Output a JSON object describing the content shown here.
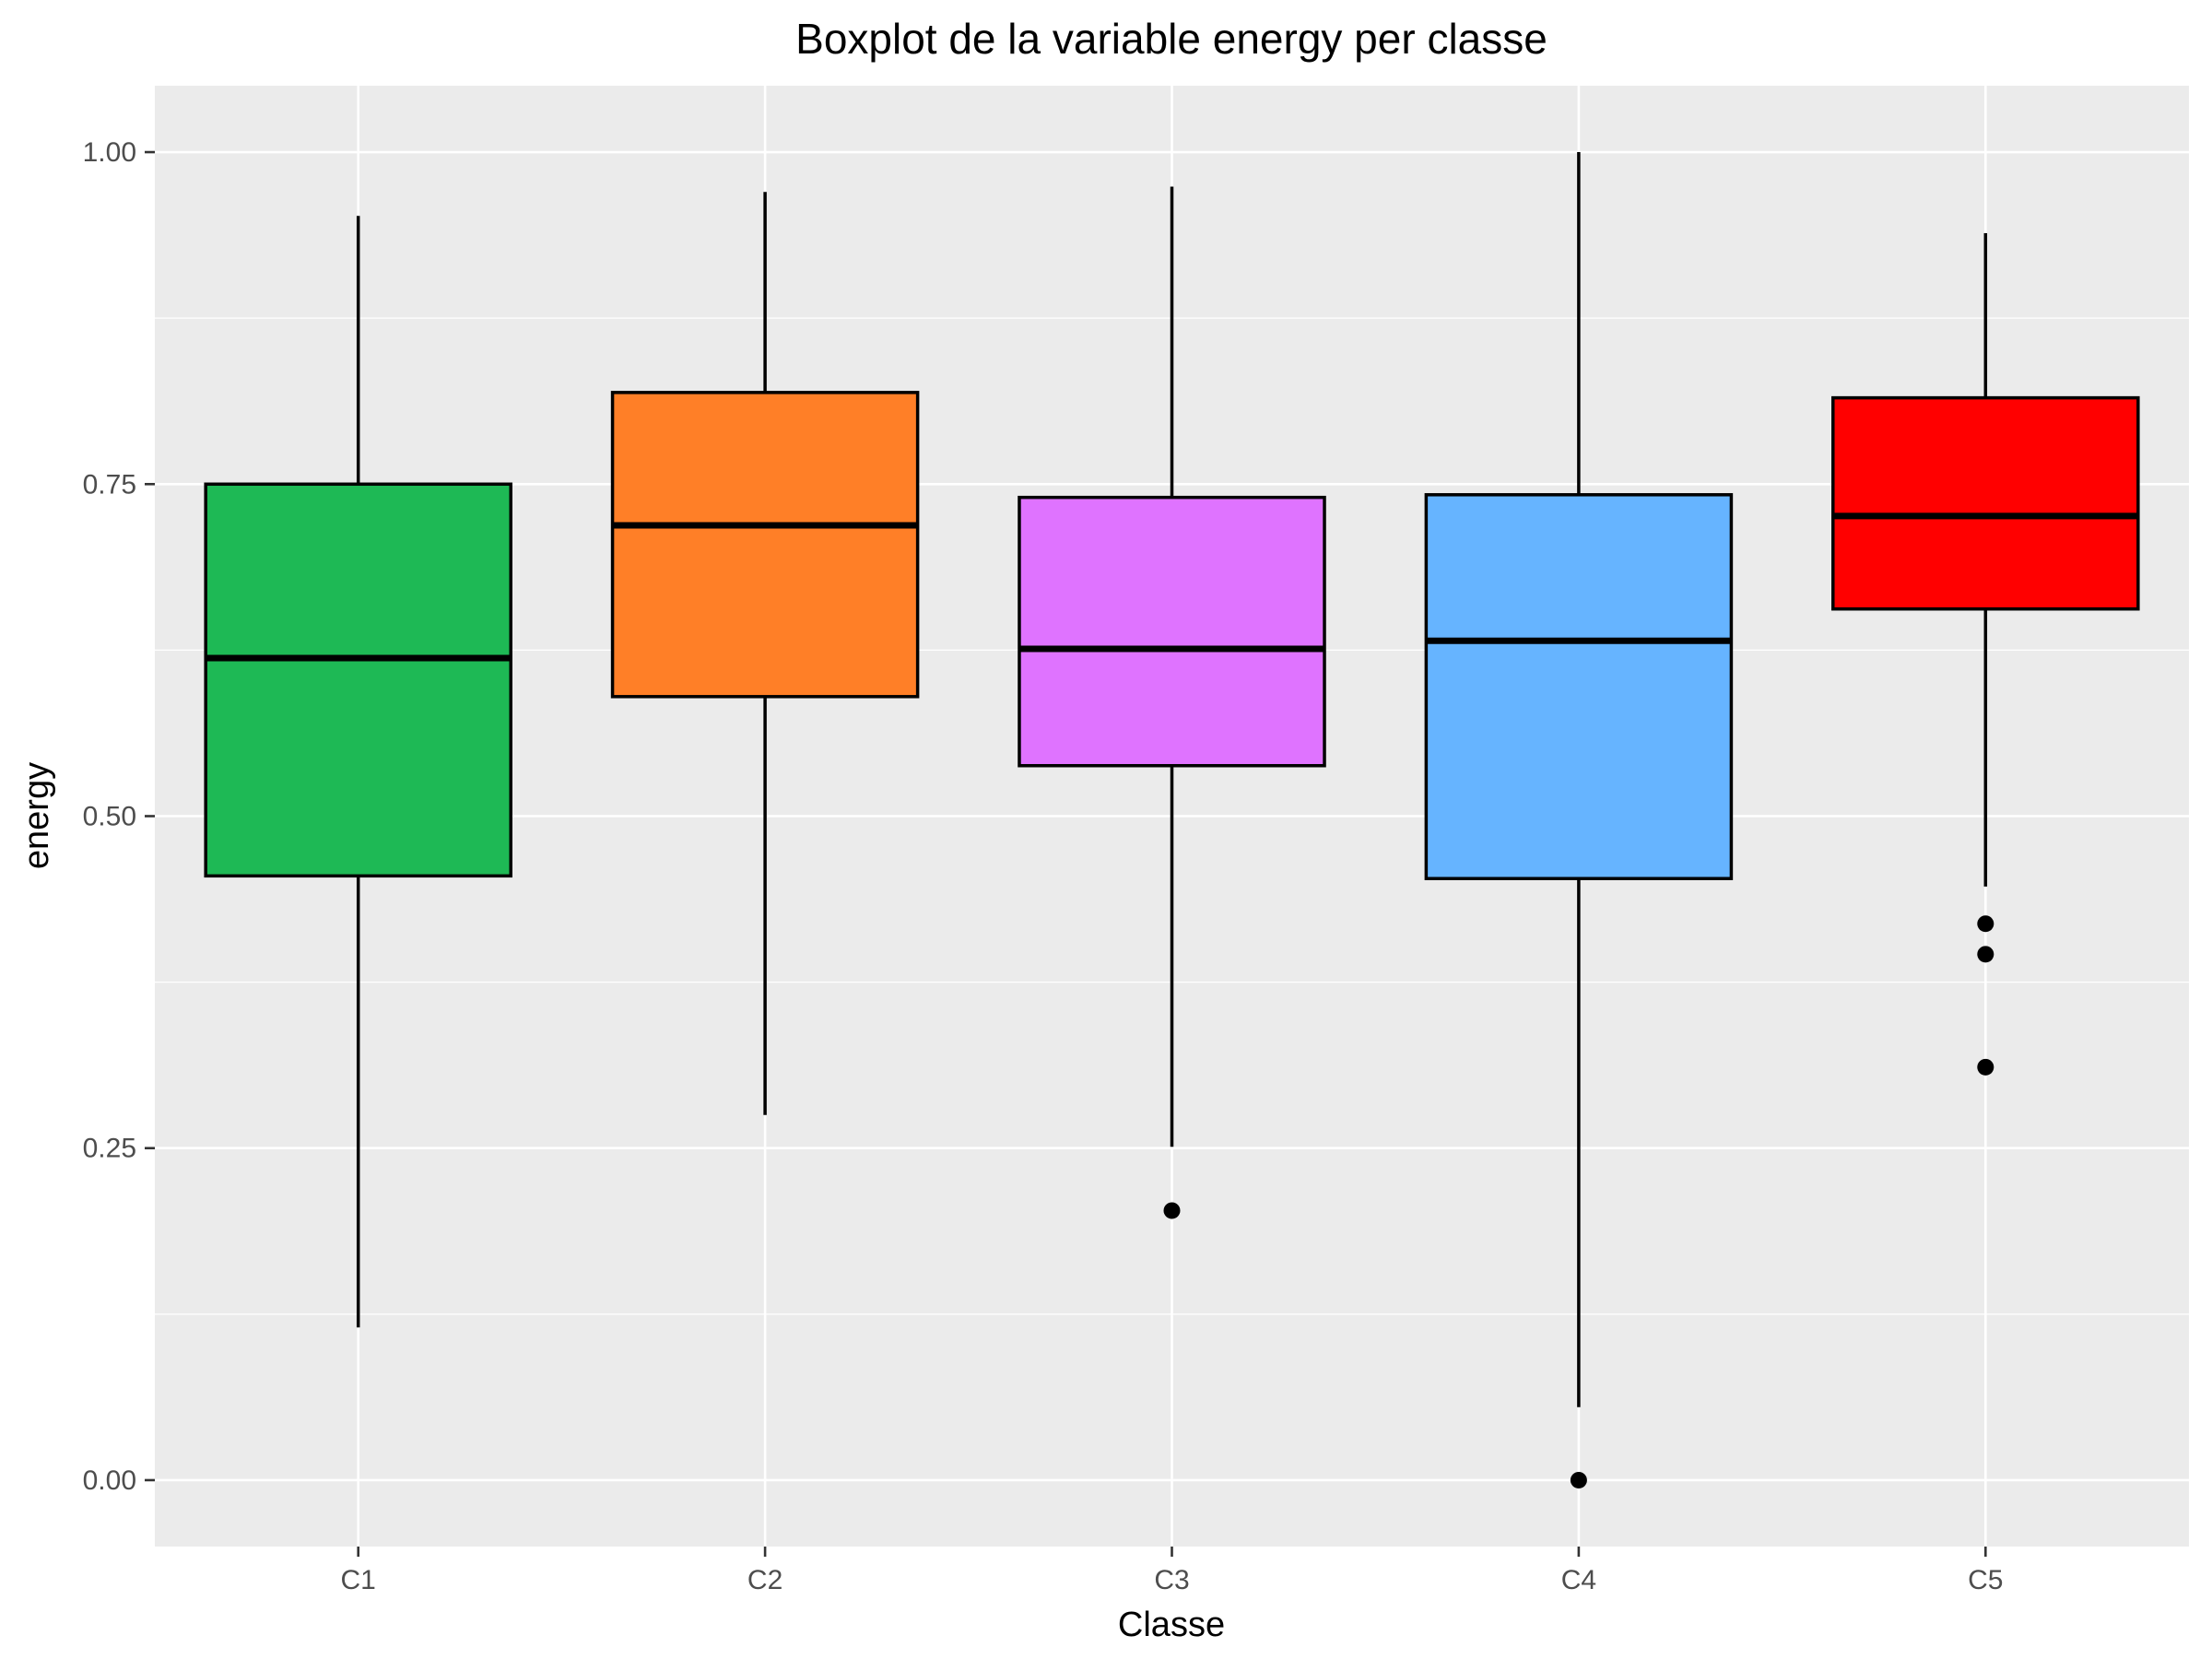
{
  "chart_data": {
    "type": "box",
    "title": "Boxplot de la variable energy per classe",
    "xlabel": "Classe",
    "ylabel": "energy",
    "ylim": [
      -0.05,
      1.05
    ],
    "yticks": [
      0.0,
      0.25,
      0.5,
      0.75,
      1.0
    ],
    "ytick_labels": [
      "0.00",
      "0.25",
      "0.50",
      "0.75",
      "1.00"
    ],
    "grid": true,
    "categories": [
      "C1",
      "C2",
      "C3",
      "C4",
      "C5"
    ],
    "boxes": [
      {
        "category": "C1",
        "color": "#1eb955",
        "whisker_low": 0.115,
        "q1": 0.455,
        "median": 0.619,
        "q3": 0.75,
        "whisker_high": 0.952,
        "outliers": []
      },
      {
        "category": "C2",
        "color": "#ff7f27",
        "whisker_low": 0.275,
        "q1": 0.59,
        "median": 0.719,
        "q3": 0.819,
        "whisker_high": 0.97,
        "outliers": []
      },
      {
        "category": "C3",
        "color": "#df73ff",
        "whisker_low": 0.251,
        "q1": 0.538,
        "median": 0.626,
        "q3": 0.74,
        "whisker_high": 0.974,
        "outliers": [
          0.203
        ]
      },
      {
        "category": "C4",
        "color": "#66b4ff",
        "whisker_low": 0.055,
        "q1": 0.453,
        "median": 0.632,
        "q3": 0.742,
        "whisker_high": 1.0,
        "outliers": [
          0.0
        ]
      },
      {
        "category": "C5",
        "color": "#ff0000",
        "whisker_low": 0.447,
        "q1": 0.656,
        "median": 0.726,
        "q3": 0.815,
        "whisker_high": 0.939,
        "outliers": [
          0.419,
          0.396,
          0.311
        ]
      }
    ],
    "colors": {
      "panel_background": "#ebebeb",
      "grid_major": "#ffffff",
      "box_outline": "#000000",
      "page_background": "#ffffff"
    }
  }
}
